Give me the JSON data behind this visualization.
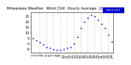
{
  "title": "Milwaukee Weather  Wind Chill  Hourly Average  (24 Hours)",
  "hours": [
    1,
    2,
    3,
    4,
    5,
    6,
    7,
    8,
    9,
    10,
    11,
    12,
    13,
    14,
    15,
    16,
    17,
    18,
    19,
    20,
    21,
    22,
    23,
    24
  ],
  "wind_chill": [
    5,
    3,
    1,
    -1,
    -3,
    -4,
    -5,
    -6,
    -6,
    -5,
    -4,
    -3,
    0,
    6,
    14,
    20,
    24,
    26,
    25,
    22,
    18,
    14,
    8,
    2
  ],
  "ylabel_values": [
    25,
    20,
    15,
    10,
    5,
    0,
    -5
  ],
  "ylim": [
    -8,
    29
  ],
  "xlim": [
    0.5,
    24.5
  ],
  "dot_color": "#0000ff",
  "dot_size": 2,
  "grid_color": "#aaaaaa",
  "grid_positions": [
    3,
    5,
    7,
    9,
    11,
    13,
    15,
    17,
    19,
    21,
    23
  ],
  "bg_color": "#ffffff",
  "legend_color": "#0000cc",
  "legend_label": "Wind Chill",
  "tick_label_size": 3.5,
  "title_size": 4.0
}
